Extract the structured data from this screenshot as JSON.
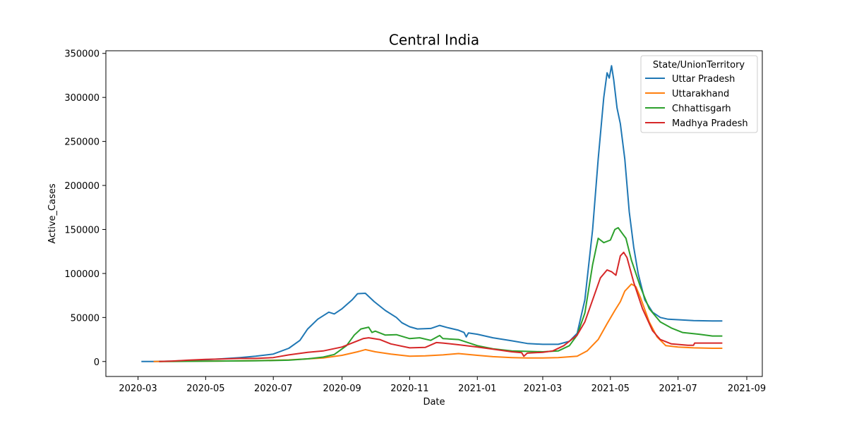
{
  "chart_data": {
    "type": "line",
    "title": "Central India",
    "xlabel": "Date",
    "ylabel": "Active_Cases",
    "x_axis_type": "date",
    "xlim": [
      "2020-02-01",
      "2021-09-15"
    ],
    "ylim": [
      -17000,
      353000
    ],
    "x_ticks": [
      "2020-03",
      "2020-05",
      "2020-07",
      "2020-09",
      "2020-11",
      "2021-01",
      "2021-03",
      "2021-05",
      "2021-07",
      "2021-09"
    ],
    "y_ticks": [
      0,
      50000,
      100000,
      150000,
      200000,
      250000,
      300000,
      350000
    ],
    "grid": false,
    "legend": {
      "title": "State/UnionTerritory",
      "placement": "top-right"
    },
    "series": [
      {
        "name": "Uttar Pradesh",
        "color": "#1f77b4",
        "points": [
          [
            "2020-03-04",
            0
          ],
          [
            "2020-03-15",
            0
          ],
          [
            "2020-04-01",
            400
          ],
          [
            "2020-04-15",
            1200
          ],
          [
            "2020-05-01",
            2000
          ],
          [
            "2020-05-15",
            3000
          ],
          [
            "2020-06-01",
            4500
          ],
          [
            "2020-06-15",
            6000
          ],
          [
            "2020-07-01",
            8500
          ],
          [
            "2020-07-15",
            15000
          ],
          [
            "2020-07-25",
            24000
          ],
          [
            "2020-08-01",
            37000
          ],
          [
            "2020-08-10",
            48000
          ],
          [
            "2020-08-20",
            56000
          ],
          [
            "2020-08-25",
            54000
          ],
          [
            "2020-09-01",
            60000
          ],
          [
            "2020-09-10",
            70000
          ],
          [
            "2020-09-15",
            77000
          ],
          [
            "2020-09-22",
            77500
          ],
          [
            "2020-09-30",
            68000
          ],
          [
            "2020-10-10",
            58000
          ],
          [
            "2020-10-20",
            50000
          ],
          [
            "2020-10-25",
            44000
          ],
          [
            "2020-11-01",
            39500
          ],
          [
            "2020-11-08",
            37000
          ],
          [
            "2020-11-20",
            37500
          ],
          [
            "2020-11-28",
            41000
          ],
          [
            "2020-12-05",
            38500
          ],
          [
            "2020-12-15",
            35500
          ],
          [
            "2020-12-20",
            33000
          ],
          [
            "2020-12-22",
            28000
          ],
          [
            "2020-12-24",
            32500
          ],
          [
            "2021-01-01",
            31000
          ],
          [
            "2021-01-15",
            27000
          ],
          [
            "2021-02-01",
            23500
          ],
          [
            "2021-02-15",
            20500
          ],
          [
            "2021-03-01",
            19500
          ],
          [
            "2021-03-15",
            19500
          ],
          [
            "2021-03-25",
            23000
          ],
          [
            "2021-04-01",
            32000
          ],
          [
            "2021-04-08",
            70000
          ],
          [
            "2021-04-15",
            150000
          ],
          [
            "2021-04-20",
            230000
          ],
          [
            "2021-04-25",
            300000
          ],
          [
            "2021-04-28",
            328000
          ],
          [
            "2021-04-30",
            322000
          ],
          [
            "2021-05-02",
            336000
          ],
          [
            "2021-05-04",
            320000
          ],
          [
            "2021-05-07",
            288000
          ],
          [
            "2021-05-10",
            270000
          ],
          [
            "2021-05-14",
            230000
          ],
          [
            "2021-05-18",
            170000
          ],
          [
            "2021-05-22",
            130000
          ],
          [
            "2021-05-26",
            100000
          ],
          [
            "2021-06-01",
            70000
          ],
          [
            "2021-06-08",
            56000
          ],
          [
            "2021-06-15",
            50000
          ],
          [
            "2021-06-22",
            48000
          ],
          [
            "2021-07-01",
            47500
          ],
          [
            "2021-07-15",
            46500
          ],
          [
            "2021-08-01",
            46000
          ],
          [
            "2021-08-10",
            46000
          ]
        ]
      },
      {
        "name": "Uttarakhand",
        "color": "#ff7f0e",
        "points": [
          [
            "2020-03-15",
            0
          ],
          [
            "2020-04-15",
            300
          ],
          [
            "2020-05-15",
            500
          ],
          [
            "2020-06-15",
            1000
          ],
          [
            "2020-07-15",
            1800
          ],
          [
            "2020-08-01",
            3000
          ],
          [
            "2020-08-15",
            4000
          ],
          [
            "2020-09-01",
            7000
          ],
          [
            "2020-09-15",
            11000
          ],
          [
            "2020-09-22",
            13500
          ],
          [
            "2020-10-01",
            11000
          ],
          [
            "2020-10-15",
            8500
          ],
          [
            "2020-11-01",
            6000
          ],
          [
            "2020-11-15",
            6500
          ],
          [
            "2020-12-01",
            7500
          ],
          [
            "2020-12-15",
            9000
          ],
          [
            "2021-01-01",
            7000
          ],
          [
            "2021-01-15",
            5500
          ],
          [
            "2021-02-01",
            4500
          ],
          [
            "2021-02-15",
            4000
          ],
          [
            "2021-03-01",
            4000
          ],
          [
            "2021-03-15",
            4500
          ],
          [
            "2021-04-01",
            6000
          ],
          [
            "2021-04-10",
            12000
          ],
          [
            "2021-04-20",
            25000
          ],
          [
            "2021-04-28",
            43000
          ],
          [
            "2021-05-05",
            58000
          ],
          [
            "2021-05-10",
            68000
          ],
          [
            "2021-05-14",
            80000
          ],
          [
            "2021-05-20",
            88000
          ],
          [
            "2021-05-24",
            85000
          ],
          [
            "2021-05-28",
            73000
          ],
          [
            "2021-06-05",
            45000
          ],
          [
            "2021-06-12",
            28000
          ],
          [
            "2021-06-20",
            18000
          ],
          [
            "2021-07-01",
            16500
          ],
          [
            "2021-07-15",
            15500
          ],
          [
            "2021-08-01",
            15000
          ],
          [
            "2021-08-10",
            15000
          ]
        ]
      },
      {
        "name": "Chhattisgarh",
        "color": "#2ca02c",
        "points": [
          [
            "2020-03-20",
            0
          ],
          [
            "2020-04-15",
            200
          ],
          [
            "2020-05-15",
            500
          ],
          [
            "2020-06-15",
            800
          ],
          [
            "2020-07-15",
            1500
          ],
          [
            "2020-08-01",
            3000
          ],
          [
            "2020-08-15",
            5000
          ],
          [
            "2020-08-25",
            8000
          ],
          [
            "2020-09-05",
            18000
          ],
          [
            "2020-09-12",
            30000
          ],
          [
            "2020-09-18",
            37000
          ],
          [
            "2020-09-25",
            39000
          ],
          [
            "2020-09-28",
            33000
          ],
          [
            "2020-10-01",
            34500
          ],
          [
            "2020-10-10",
            30000
          ],
          [
            "2020-10-20",
            30500
          ],
          [
            "2020-11-01",
            26000
          ],
          [
            "2020-11-10",
            27000
          ],
          [
            "2020-11-20",
            24000
          ],
          [
            "2020-11-28",
            29500
          ],
          [
            "2020-12-01",
            26000
          ],
          [
            "2020-12-15",
            25000
          ],
          [
            "2021-01-01",
            18000
          ],
          [
            "2021-01-15",
            14500
          ],
          [
            "2021-02-01",
            12000
          ],
          [
            "2021-02-15",
            11500
          ],
          [
            "2021-03-01",
            11000
          ],
          [
            "2021-03-15",
            12000
          ],
          [
            "2021-03-25",
            18000
          ],
          [
            "2021-04-01",
            30000
          ],
          [
            "2021-04-08",
            55000
          ],
          [
            "2021-04-15",
            110000
          ],
          [
            "2021-04-20",
            140000
          ],
          [
            "2021-04-25",
            135000
          ],
          [
            "2021-05-01",
            138000
          ],
          [
            "2021-05-05",
            150000
          ],
          [
            "2021-05-08",
            152000
          ],
          [
            "2021-05-12",
            145000
          ],
          [
            "2021-05-15",
            140000
          ],
          [
            "2021-05-20",
            115000
          ],
          [
            "2021-05-28",
            85000
          ],
          [
            "2021-06-05",
            60000
          ],
          [
            "2021-06-15",
            45000
          ],
          [
            "2021-06-25",
            38000
          ],
          [
            "2021-07-05",
            33000
          ],
          [
            "2021-07-20",
            31000
          ],
          [
            "2021-08-01",
            29000
          ],
          [
            "2021-08-10",
            29000
          ]
        ]
      },
      {
        "name": "Madhya Pradesh",
        "color": "#d62728",
        "points": [
          [
            "2020-03-20",
            0
          ],
          [
            "2020-04-01",
            500
          ],
          [
            "2020-04-15",
            1500
          ],
          [
            "2020-05-01",
            2500
          ],
          [
            "2020-05-15",
            2800
          ],
          [
            "2020-06-01",
            3500
          ],
          [
            "2020-06-15",
            3500
          ],
          [
            "2020-07-01",
            4500
          ],
          [
            "2020-07-15",
            7500
          ],
          [
            "2020-08-01",
            10500
          ],
          [
            "2020-08-15",
            12000
          ],
          [
            "2020-09-01",
            16500
          ],
          [
            "2020-09-10",
            21000
          ],
          [
            "2020-09-20",
            26000
          ],
          [
            "2020-09-25",
            27000
          ],
          [
            "2020-10-05",
            25000
          ],
          [
            "2020-10-15",
            20000
          ],
          [
            "2020-11-01",
            15500
          ],
          [
            "2020-11-15",
            16000
          ],
          [
            "2020-11-25",
            21500
          ],
          [
            "2020-12-01",
            21000
          ],
          [
            "2020-12-15",
            19000
          ],
          [
            "2021-01-01",
            16500
          ],
          [
            "2021-01-15",
            14000
          ],
          [
            "2021-02-01",
            11000
          ],
          [
            "2021-02-10",
            10000
          ],
          [
            "2021-02-12",
            6000
          ],
          [
            "2021-02-15",
            9500
          ],
          [
            "2021-03-01",
            10500
          ],
          [
            "2021-03-10",
            12000
          ],
          [
            "2021-03-20",
            18000
          ],
          [
            "2021-04-01",
            30000
          ],
          [
            "2021-04-08",
            45000
          ],
          [
            "2021-04-15",
            70000
          ],
          [
            "2021-04-22",
            95000
          ],
          [
            "2021-04-28",
            104000
          ],
          [
            "2021-05-02",
            102000
          ],
          [
            "2021-05-06",
            98000
          ],
          [
            "2021-05-10",
            120000
          ],
          [
            "2021-05-13",
            124000
          ],
          [
            "2021-05-16",
            118000
          ],
          [
            "2021-05-22",
            90000
          ],
          [
            "2021-05-30",
            60000
          ],
          [
            "2021-06-08",
            35000
          ],
          [
            "2021-06-15",
            25000
          ],
          [
            "2021-06-25",
            20000
          ],
          [
            "2021-07-10",
            18500
          ],
          [
            "2021-07-15",
            18500
          ],
          [
            "2021-07-16",
            21000
          ],
          [
            "2021-08-01",
            21000
          ],
          [
            "2021-08-10",
            21000
          ]
        ]
      }
    ]
  }
}
